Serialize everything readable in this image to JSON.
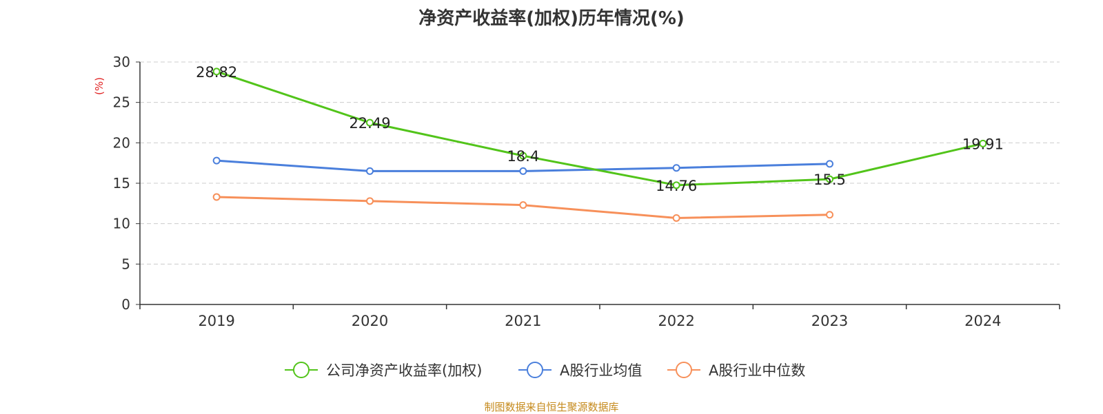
{
  "title": "净资产收益率(加权)历年情况(%)",
  "footer": "制图数据来自恒生聚源数据库",
  "chart_data": {
    "type": "line",
    "title": "净资产收益率(加权)历年情况(%)",
    "ylabel": "(%)",
    "xlabel": "",
    "categories": [
      "2019",
      "2020",
      "2021",
      "2022",
      "2023",
      "2024"
    ],
    "ylim": [
      0,
      30
    ],
    "yticks": [
      0,
      5,
      10,
      15,
      20,
      25,
      30
    ],
    "grid": true,
    "legend_position": "bottom",
    "series": [
      {
        "name": "公司净资产收益率(加权)",
        "color": "#52c41a",
        "values": [
          28.82,
          22.49,
          18.4,
          14.76,
          15.5,
          19.91
        ],
        "labels": [
          "28.82",
          "22.49",
          "18.4",
          "14.76",
          "15.5",
          "19.91"
        ]
      },
      {
        "name": "A股行业均值",
        "color": "#4a7fdc",
        "values": [
          17.8,
          16.5,
          16.5,
          16.9,
          17.4,
          null
        ]
      },
      {
        "name": "A股行业中位数",
        "color": "#f7905a",
        "values": [
          13.3,
          12.8,
          12.3,
          10.7,
          11.1,
          null
        ]
      }
    ]
  }
}
